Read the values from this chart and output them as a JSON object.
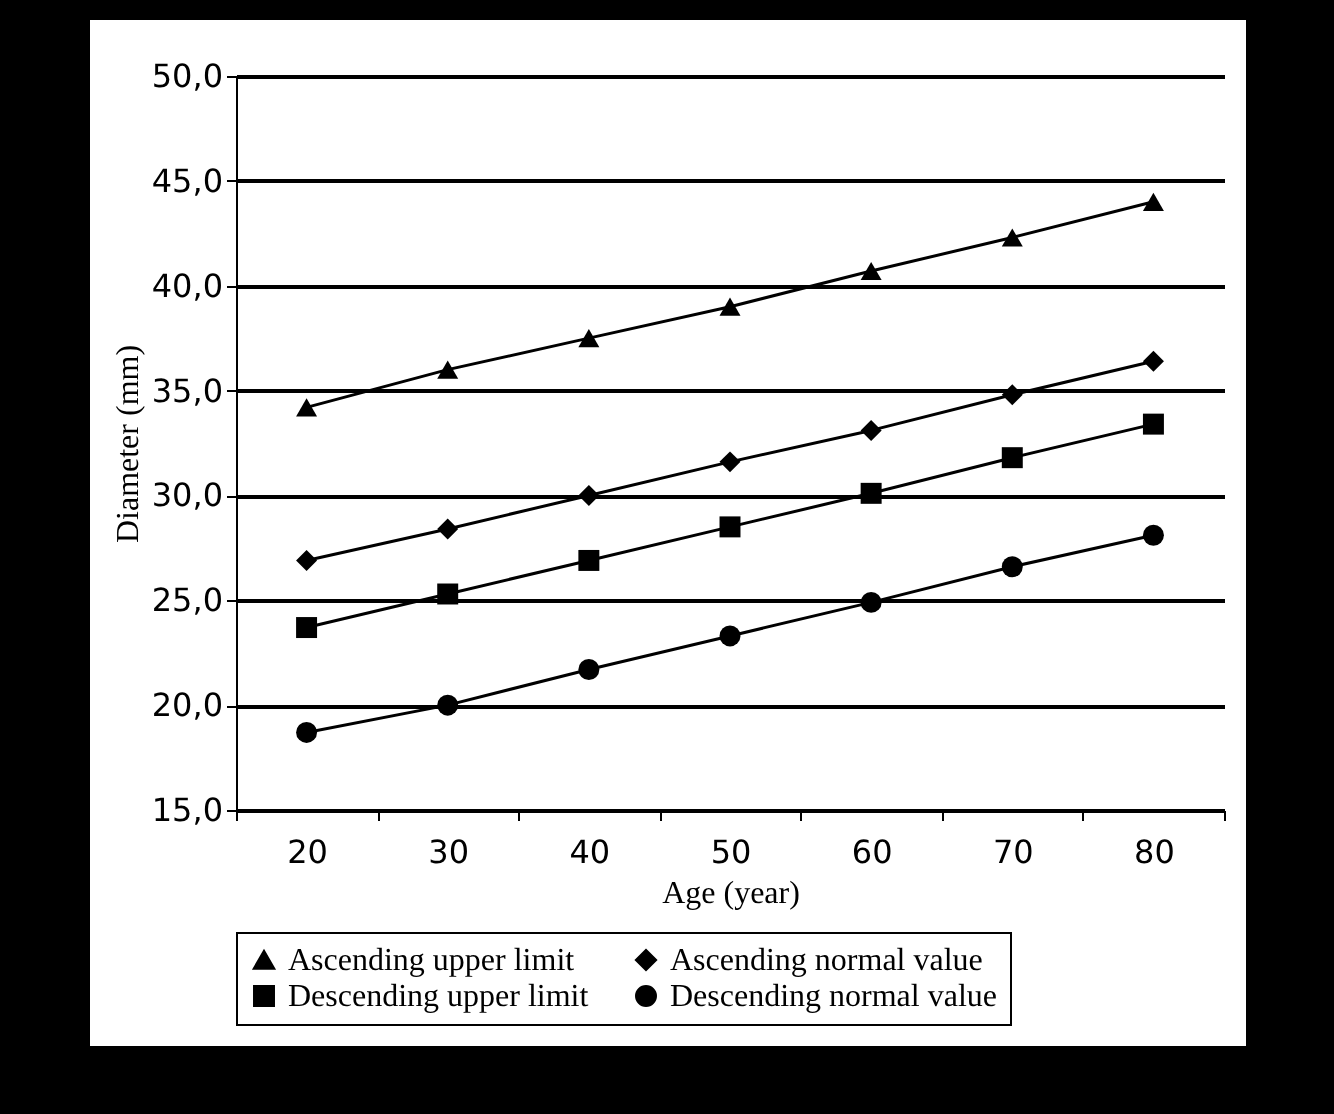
{
  "chart_data": {
    "type": "line",
    "xlabel": "Age (year)",
    "ylabel": "Diameter (mm)",
    "categories": [
      "20",
      "30",
      "40",
      "50",
      "60",
      "70",
      "80"
    ],
    "series": [
      {
        "name": "Ascending upper limit",
        "color": "#000000",
        "marker": "triangle",
        "values": [
          34.2,
          36.0,
          37.5,
          39.0,
          40.7,
          42.3,
          44.0
        ]
      },
      {
        "name": "Ascending normal value",
        "color": "#000000",
        "marker": "diamond",
        "values": [
          26.9,
          28.4,
          30.0,
          31.6,
          33.1,
          34.8,
          36.4
        ]
      },
      {
        "name": "Descending upper limit",
        "color": "#000000",
        "marker": "square",
        "values": [
          23.7,
          25.3,
          26.9,
          28.5,
          30.1,
          31.8,
          33.4
        ]
      },
      {
        "name": "Descending normal value",
        "color": "#000000",
        "marker": "circle",
        "values": [
          18.7,
          20.0,
          21.7,
          23.3,
          24.9,
          26.6,
          28.1
        ]
      }
    ],
    "ylim": [
      15,
      50
    ],
    "yticks": [
      {
        "value": 15,
        "label": "15,0"
      },
      {
        "value": 20,
        "label": "20,0"
      },
      {
        "value": 25,
        "label": "25,0"
      },
      {
        "value": 30,
        "label": "30,0"
      },
      {
        "value": 35,
        "label": "35,0"
      },
      {
        "value": 40,
        "label": "40,0"
      },
      {
        "value": 45,
        "label": "45,0"
      },
      {
        "value": 50,
        "label": "50,0"
      }
    ],
    "grid": "y",
    "legend": "bottom",
    "line_style": "solid"
  }
}
